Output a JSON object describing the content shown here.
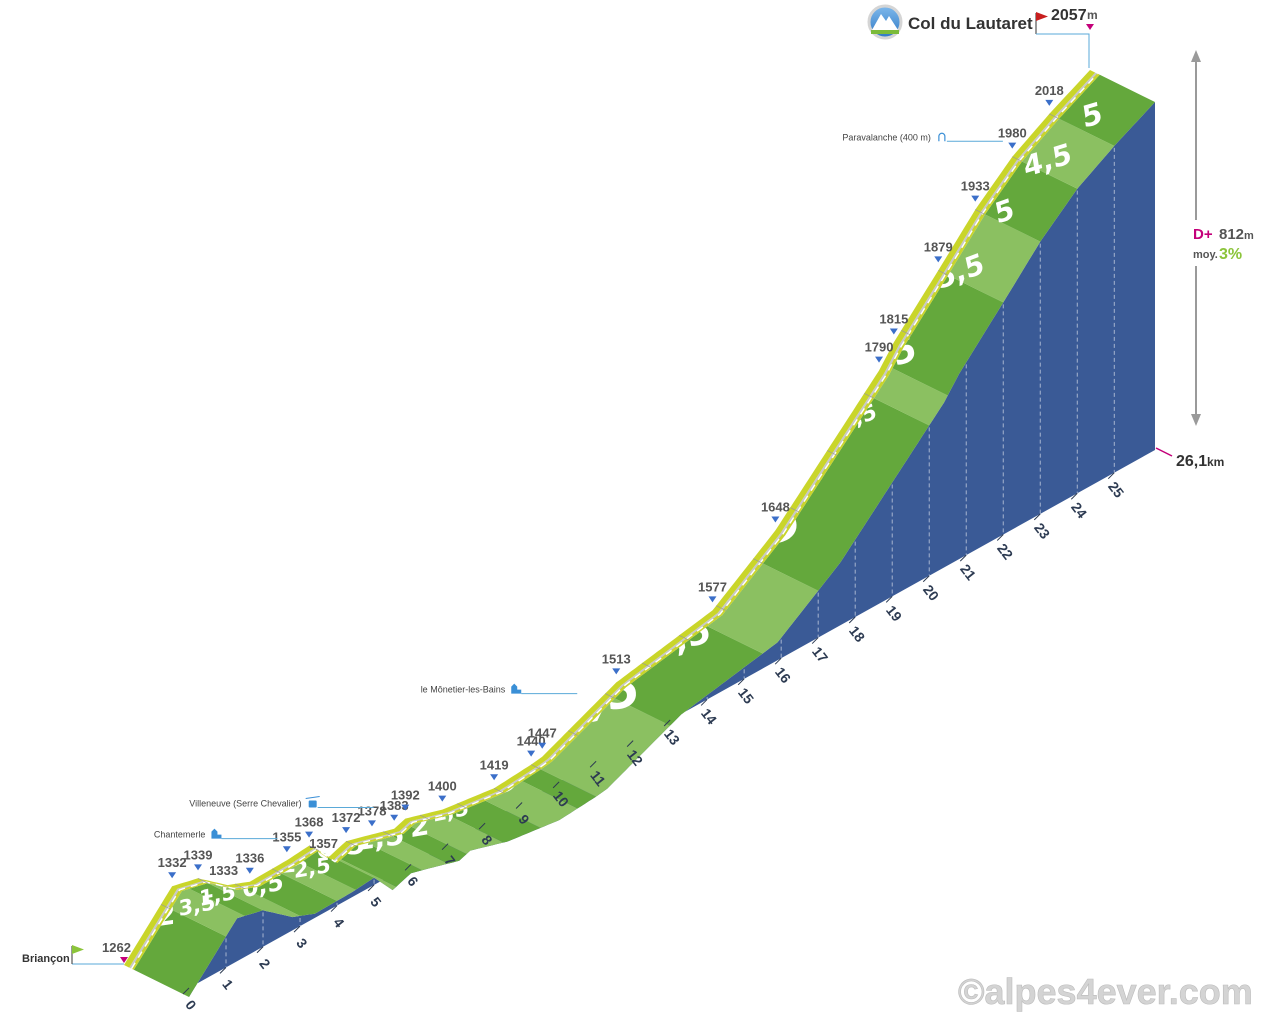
{
  "chart_data": {
    "type": "area",
    "title": "Col du Lautaret",
    "summit_altitude": "2057",
    "summit_unit": "m",
    "start_name": "Briançon",
    "start_altitude": "1262",
    "total_distance": "26,1",
    "distance_unit": "km",
    "elevation_gain_label": "D+",
    "elevation_gain": "812",
    "elevation_gain_unit": "m",
    "average_label": "moy.",
    "average_gradient": "3%",
    "km_ticks": [
      "0",
      "1",
      "2",
      "3",
      "4",
      "5",
      "6",
      "7",
      "8",
      "9",
      "10",
      "11",
      "12",
      "13",
      "14",
      "15",
      "16",
      "17",
      "18",
      "19",
      "20",
      "21",
      "22",
      "23",
      "24",
      "25"
    ],
    "altitude_points": [
      {
        "km": 0,
        "alt": 1262
      },
      {
        "km": 1.3,
        "alt": 1332
      },
      {
        "km": 2.0,
        "alt": 1339
      },
      {
        "km": 2.8,
        "alt": 1333
      },
      {
        "km": 3.4,
        "alt": 1336
      },
      {
        "km": 4.4,
        "alt": 1355
      },
      {
        "km": 5.0,
        "alt": 1368
      },
      {
        "km": 5.5,
        "alt": 1357
      },
      {
        "km": 6.0,
        "alt": 1372
      },
      {
        "km": 6.7,
        "alt": 1378
      },
      {
        "km": 7.3,
        "alt": 1383
      },
      {
        "km": 7.6,
        "alt": 1392
      },
      {
        "km": 8.6,
        "alt": 1400
      },
      {
        "km": 10.0,
        "alt": 1419
      },
      {
        "km": 11.0,
        "alt": 1440
      },
      {
        "km": 11.3,
        "alt": 1447
      },
      {
        "km": 13.3,
        "alt": 1513
      },
      {
        "km": 15.9,
        "alt": 1577
      },
      {
        "km": 17.6,
        "alt": 1648
      },
      {
        "km": 20.4,
        "alt": 1790
      },
      {
        "km": 20.8,
        "alt": 1815
      },
      {
        "km": 22.0,
        "alt": 1879
      },
      {
        "km": 23.0,
        "alt": 1933
      },
      {
        "km": 24.0,
        "alt": 1980
      },
      {
        "km": 25.0,
        "alt": 2018
      },
      {
        "km": 26.1,
        "alt": 2057
      }
    ],
    "altitude_labels": [
      {
        "km": 1.3,
        "value": "1332",
        "pointer": true,
        "small": false
      },
      {
        "km": 2.0,
        "value": "1339",
        "pointer": true,
        "small": false
      },
      {
        "km": 2.8,
        "value": "1333",
        "pointer": false,
        "small": true
      },
      {
        "km": 3.4,
        "value": "1336",
        "pointer": true,
        "small": false
      },
      {
        "km": 4.4,
        "value": "1355",
        "pointer": true,
        "small": false
      },
      {
        "km": 5.0,
        "value": "1368",
        "pointer": true,
        "small": false
      },
      {
        "km": 5.5,
        "value": "1357",
        "pointer": false,
        "small": true
      },
      {
        "km": 6.0,
        "value": "1372",
        "pointer": true,
        "small": false
      },
      {
        "km": 6.7,
        "value": "1378",
        "pointer": true,
        "small": false
      },
      {
        "km": 7.3,
        "value": "1383",
        "pointer": true,
        "small": false
      },
      {
        "km": 7.6,
        "value": "1392",
        "pointer": true,
        "small": false
      },
      {
        "km": 8.6,
        "value": "1400",
        "pointer": true,
        "small": false
      },
      {
        "km": 10.0,
        "value": "1419",
        "pointer": true,
        "small": false
      },
      {
        "km": 11.0,
        "value": "1440",
        "pointer": true,
        "small": false
      },
      {
        "km": 11.3,
        "value": "1447",
        "pointer": true,
        "small": false
      },
      {
        "km": 13.3,
        "value": "1513",
        "pointer": true,
        "small": false
      },
      {
        "km": 15.9,
        "value": "1577",
        "pointer": true,
        "small": false
      },
      {
        "km": 17.6,
        "value": "1648",
        "pointer": true,
        "small": false
      },
      {
        "km": 20.4,
        "value": "1790",
        "pointer": true,
        "small": false
      },
      {
        "km": 20.8,
        "value": "1815",
        "pointer": true,
        "small": false
      },
      {
        "km": 22.0,
        "value": "1879",
        "pointer": true,
        "small": false
      },
      {
        "km": 23.0,
        "value": "1933",
        "pointer": true,
        "small": false
      },
      {
        "km": 24.0,
        "value": "1980",
        "pointer": true,
        "small": false
      },
      {
        "km": 25.0,
        "value": "2018",
        "pointer": true,
        "small": false
      }
    ],
    "segments": [
      {
        "from": 0,
        "to": 1,
        "grade": "5",
        "shade": "dark"
      },
      {
        "from": 1,
        "to": 1.5,
        "grade": "2",
        "shade": "light"
      },
      {
        "from": 1.5,
        "to": 2,
        "grade": "1",
        "shade": "dark"
      },
      {
        "from": 2,
        "to": 3,
        "grade": "0,5",
        "shade": "light"
      },
      {
        "from": 3,
        "to": 4,
        "grade": "2",
        "shade": "dark"
      },
      {
        "from": 4,
        "to": 4.5,
        "grade": "3,5",
        "shade": "light"
      },
      {
        "from": 4.5,
        "to": 5,
        "grade": "1,5",
        "shade": "dark"
      },
      {
        "from": 5,
        "to": 5.6,
        "grade": "2,5",
        "shade": "light"
      },
      {
        "from": 5.6,
        "to": 6.3,
        "grade": "0,5",
        "shade": "dark"
      },
      {
        "from": 6.3,
        "to": 7,
        "grade": "1",
        "shade": "light"
      },
      {
        "from": 7,
        "to": 7.5,
        "grade": "2,5",
        "shade": "dark"
      },
      {
        "from": 7.5,
        "to": 8.5,
        "grade": "0,5",
        "shade": "light"
      },
      {
        "from": 8.5,
        "to": 9.5,
        "grade": "1,5",
        "shade": "dark"
      },
      {
        "from": 9.5,
        "to": 10.5,
        "grade": "2",
        "shade": "light"
      },
      {
        "from": 10.5,
        "to": 11,
        "grade": "1,5",
        "shade": "dark"
      },
      {
        "from": 11,
        "to": 13,
        "grade": "3",
        "shade": "light"
      },
      {
        "from": 13,
        "to": 15.5,
        "grade": "2,5",
        "shade": "dark"
      },
      {
        "from": 15.5,
        "to": 17,
        "grade": "4,5",
        "shade": "light"
      },
      {
        "from": 17,
        "to": 20,
        "grade": "5",
        "shade": "dark"
      },
      {
        "from": 20,
        "to": 20.5,
        "grade": "5,5",
        "shade": "light"
      },
      {
        "from": 20.5,
        "to": 22,
        "grade": "5",
        "shade": "dark"
      },
      {
        "from": 22,
        "to": 23,
        "grade": "5,5",
        "shade": "light"
      },
      {
        "from": 23,
        "to": 24,
        "grade": "5",
        "shade": "dark"
      },
      {
        "from": 24,
        "to": 25,
        "grade": "4,5",
        "shade": "light"
      },
      {
        "from": 25,
        "to": 26.1,
        "grade": "5",
        "shade": "dark"
      }
    ],
    "places": [
      {
        "km": 4.2,
        "name": "Chantemerle",
        "icon": "church"
      },
      {
        "km": 6.8,
        "name": "Villeneuve (Serre Chevalier)",
        "icon": "cable-car"
      },
      {
        "km": 12.3,
        "name": "le Mônetier-les-Bains",
        "icon": "church"
      },
      {
        "km": 23.8,
        "name": "Paravalanche (400 m)",
        "icon": "tunnel"
      }
    ],
    "colors": {
      "side": "#3a5a96",
      "green_dark": "#64a83c",
      "green_light": "#8bc061",
      "road": "#c8c8c8",
      "verge": "#c9d52a",
      "pointer": "#3b6fc9",
      "start_flag": "#8bc43a",
      "summit_flag": "#c81e1e",
      "magenta": "#c4007a",
      "average": "#8bc43a"
    }
  },
  "copyright": "©alpes4ever.com"
}
